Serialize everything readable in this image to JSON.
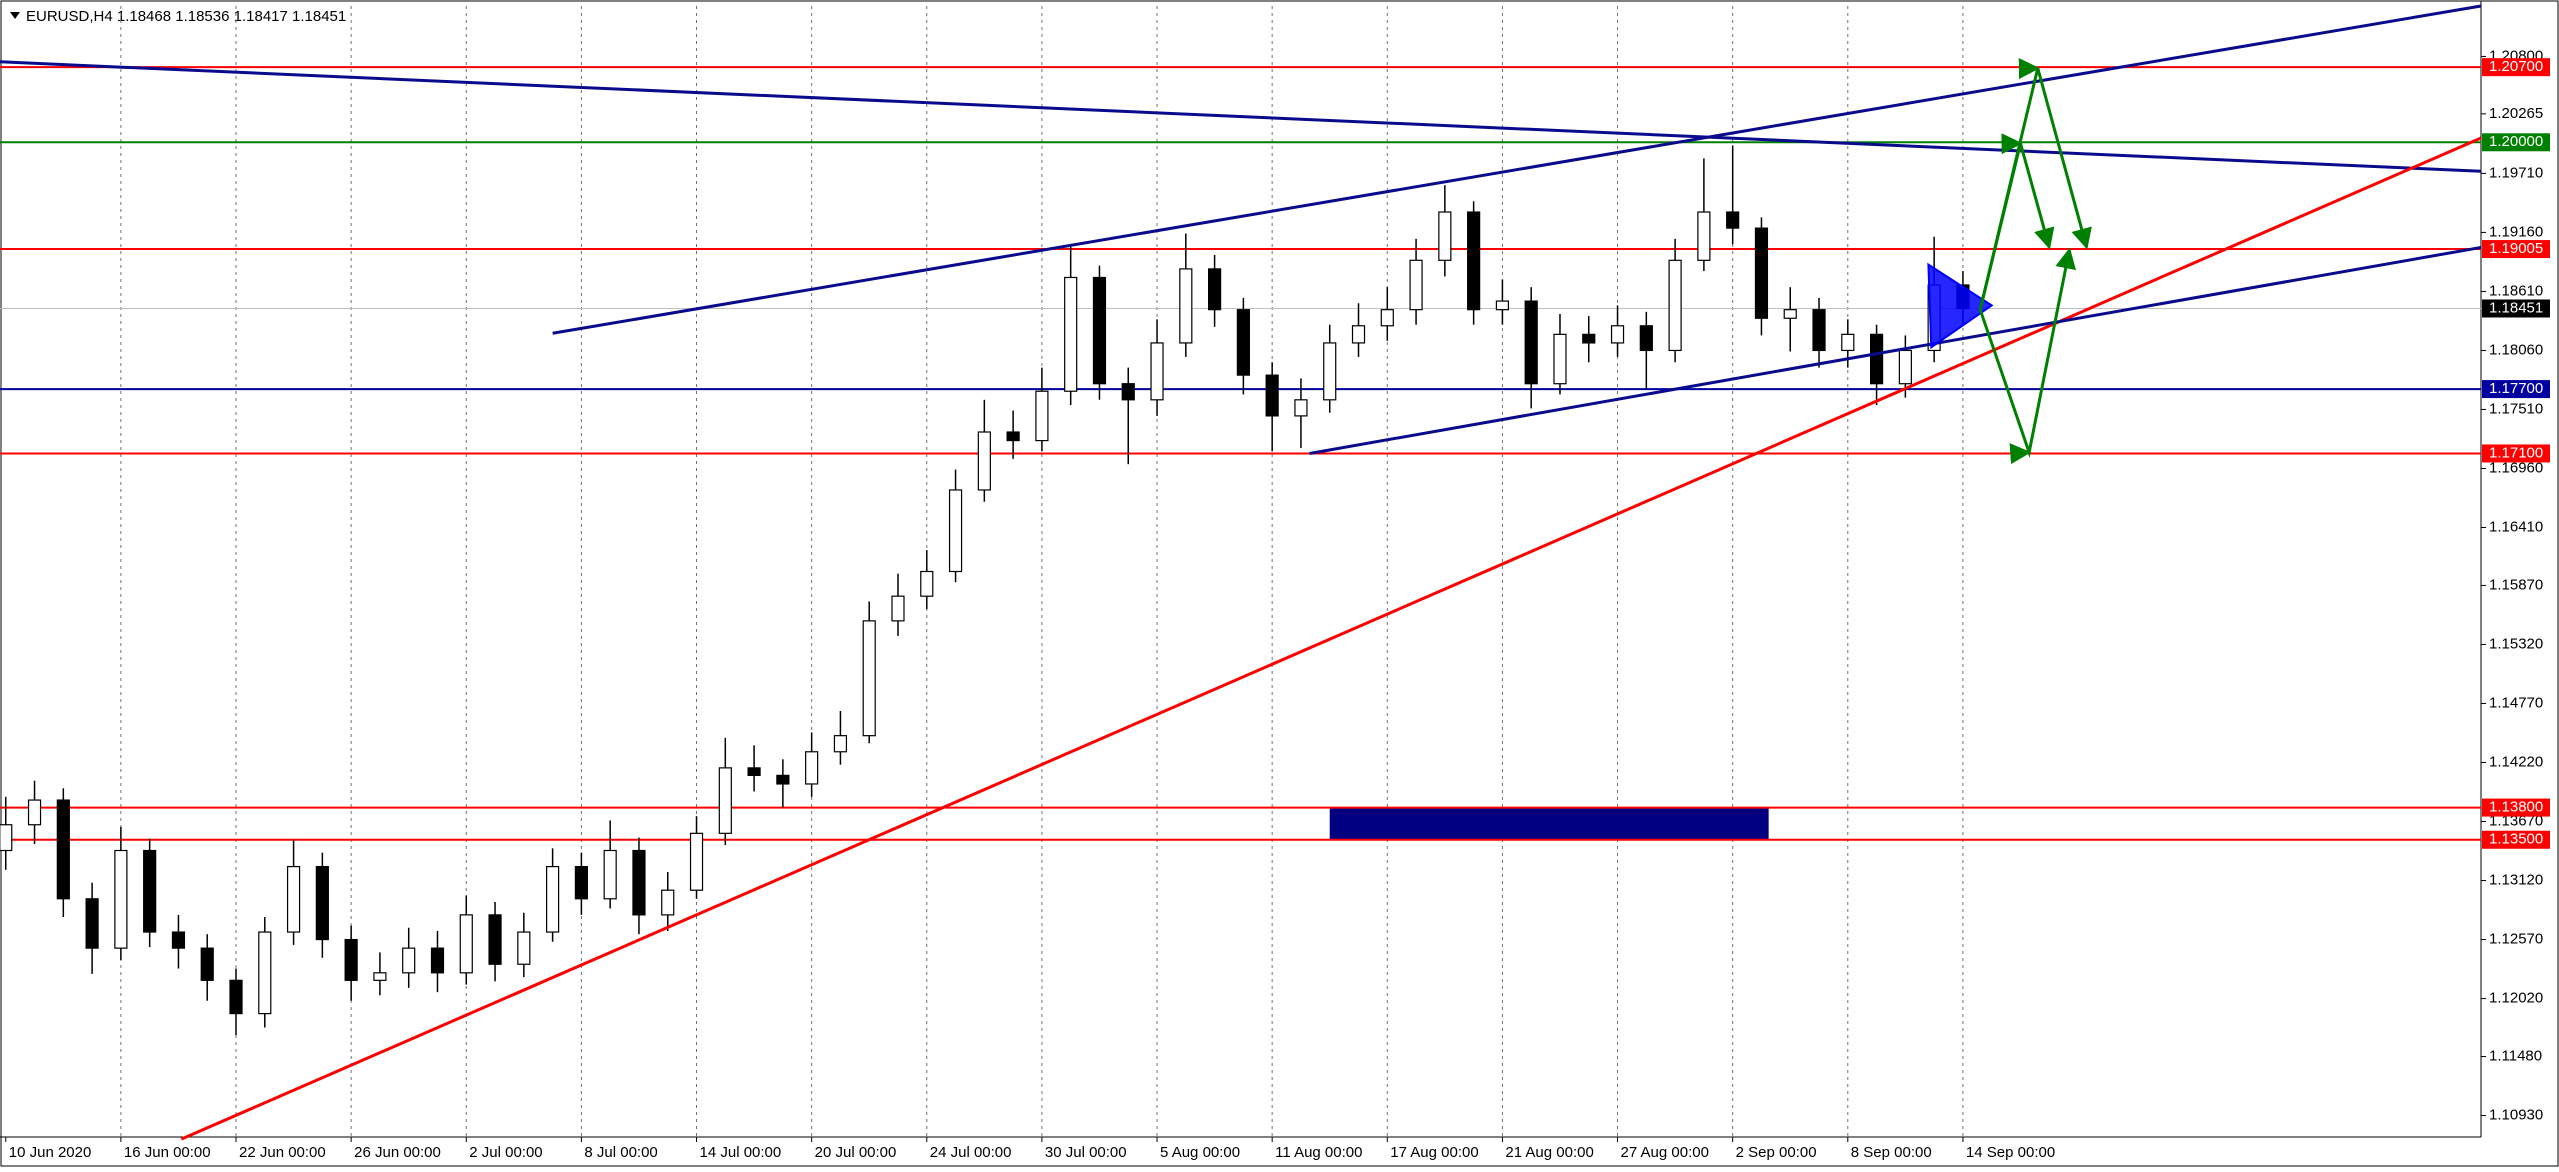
{
  "chart_data": {
    "type": "candlestick",
    "header": "EURUSD,H4  1.18468 1.18536 1.18417 1.18451",
    "open": [
      1.134,
      1.1364,
      1.1387,
      1.1295,
      1.1249,
      1.134,
      1.1264,
      1.1249,
      1.1219,
      1.1188,
      1.1264,
      1.1325,
      1.1257,
      1.1219,
      1.1226,
      1.1249,
      1.1226,
      1.128,
      1.1234,
      1.1264,
      1.1325,
      1.1295,
      1.134,
      1.128,
      1.1303,
      1.1356,
      1.1417,
      1.141,
      1.1402,
      1.1432,
      1.1447,
      1.1554,
      1.1577,
      1.16,
      1.1676,
      1.173,
      1.1722,
      1.1768,
      1.1874,
      1.1775,
      1.176,
      1.1813,
      1.1882,
      1.1844,
      1.1783,
      1.1745,
      1.176,
      1.1813,
      1.1829,
      1.1844,
      1.189,
      1.1935,
      1.1844,
      1.1852,
      1.1775,
      1.1821,
      1.1813,
      1.1829,
      1.1806,
      1.189,
      1.1935,
      1.192,
      1.1836,
      1.1844,
      1.1806,
      1.1821,
      1.1775,
      1.1806,
      1.1867
    ],
    "high": [
      1.139,
      1.1405,
      1.1398,
      1.131,
      1.1362,
      1.1351,
      1.128,
      1.1262,
      1.123,
      1.1278,
      1.135,
      1.1338,
      1.127,
      1.1245,
      1.1268,
      1.1265,
      1.1298,
      1.1292,
      1.1282,
      1.1342,
      1.1338,
      1.1368,
      1.1352,
      1.132,
      1.1372,
      1.1445,
      1.1438,
      1.1425,
      1.145,
      1.147,
      1.1572,
      1.1598,
      1.162,
      1.1695,
      1.176,
      1.175,
      1.179,
      1.1905,
      1.1885,
      1.179,
      1.1835,
      1.1915,
      1.1895,
      1.1855,
      1.1795,
      1.178,
      1.183,
      1.185,
      1.1865,
      1.191,
      1.196,
      1.1945,
      1.1872,
      1.1865,
      1.184,
      1.1838,
      1.1848,
      1.1842,
      1.191,
      1.1985,
      1.1997,
      1.193,
      1.1865,
      1.1855,
      1.1835,
      1.183,
      1.182,
      1.1912,
      1.188
    ],
    "low": [
      1.1322,
      1.1346,
      1.1278,
      1.1225,
      1.1238,
      1.125,
      1.123,
      1.12,
      1.1168,
      1.1175,
      1.1252,
      1.124,
      1.12,
      1.1205,
      1.1212,
      1.1208,
      1.1215,
      1.1218,
      1.1222,
      1.1255,
      1.128,
      1.1286,
      1.1262,
      1.1265,
      1.1295,
      1.1345,
      1.1395,
      1.138,
      1.139,
      1.142,
      1.144,
      1.154,
      1.1565,
      1.159,
      1.1665,
      1.1705,
      1.1712,
      1.1755,
      1.176,
      1.17,
      1.1745,
      1.18,
      1.1828,
      1.1765,
      1.1712,
      1.1715,
      1.1748,
      1.18,
      1.1815,
      1.183,
      1.1875,
      1.183,
      1.183,
      1.1752,
      1.1765,
      1.1795,
      1.18,
      1.177,
      1.1795,
      1.188,
      1.1905,
      1.182,
      1.1805,
      1.179,
      1.179,
      1.1755,
      1.1762,
      1.1795,
      1.183
    ],
    "close": [
      1.1364,
      1.1387,
      1.1295,
      1.1249,
      1.134,
      1.1264,
      1.1249,
      1.1219,
      1.1188,
      1.1264,
      1.1325,
      1.1257,
      1.1219,
      1.1226,
      1.1249,
      1.1226,
      1.128,
      1.1234,
      1.1264,
      1.1325,
      1.1295,
      1.134,
      1.128,
      1.1303,
      1.1356,
      1.1417,
      1.141,
      1.1402,
      1.1432,
      1.1447,
      1.1554,
      1.1577,
      1.16,
      1.1676,
      1.173,
      1.1722,
      1.1768,
      1.1874,
      1.1775,
      1.176,
      1.1813,
      1.1882,
      1.1844,
      1.1783,
      1.1745,
      1.176,
      1.1813,
      1.1829,
      1.1844,
      1.189,
      1.1935,
      1.1844,
      1.1852,
      1.1775,
      1.1821,
      1.1813,
      1.1829,
      1.1806,
      1.189,
      1.1935,
      1.192,
      1.1836,
      1.1844,
      1.1806,
      1.1821,
      1.1775,
      1.1806,
      1.1867,
      1.1845
    ],
    "xlim": [
      -0.2,
      86
    ],
    "xticks": [
      {
        "value": 0,
        "label": "10 Jun 2020"
      },
      {
        "value": 4,
        "label": "16 Jun 00:00"
      },
      {
        "value": 8,
        "label": "22 Jun 00:00"
      },
      {
        "value": 12,
        "label": "26 Jun 00:00"
      },
      {
        "value": 16,
        "label": "2 Jul 00:00"
      },
      {
        "value": 20,
        "label": "8 Jul 00:00"
      },
      {
        "value": 24,
        "label": "14 Jul 00:00"
      },
      {
        "value": 28,
        "label": "20 Jul 00:00"
      },
      {
        "value": 32,
        "label": "24 Jul 00:00"
      },
      {
        "value": 36,
        "label": "30 Jul 00:00"
      },
      {
        "value": 40,
        "label": "5 Aug 00:00"
      },
      {
        "value": 44,
        "label": "11 Aug 00:00"
      },
      {
        "value": 48,
        "label": "17 Aug 00:00"
      },
      {
        "value": 52,
        "label": "21 Aug 00:00"
      },
      {
        "value": 56,
        "label": "27 Aug 00:00"
      },
      {
        "value": 60,
        "label": "2 Sep 00:00"
      },
      {
        "value": 64,
        "label": "8 Sep 00:00"
      },
      {
        "value": 68,
        "label": "14 Sep 00:00"
      }
    ],
    "ylim": [
      1.1073,
      1.2127
    ],
    "yticks": [
      {
        "value": 1.208,
        "label": "1.20800"
      },
      {
        "value": 1.20265,
        "label": "1.20265"
      },
      {
        "value": 1.1971,
        "label": "1.19710"
      },
      {
        "value": 1.1916,
        "label": "1.19160"
      },
      {
        "value": 1.1861,
        "label": "1.18610"
      },
      {
        "value": 1.1806,
        "label": "1.18060"
      },
      {
        "value": 1.1751,
        "label": "1.17510"
      },
      {
        "value": 1.1696,
        "label": "1.16960"
      },
      {
        "value": 1.1641,
        "label": "1.16410"
      },
      {
        "value": 1.1587,
        "label": "1.15870"
      },
      {
        "value": 1.1532,
        "label": "1.15320"
      },
      {
        "value": 1.1477,
        "label": "1.14770"
      },
      {
        "value": 1.1422,
        "label": "1.14220"
      },
      {
        "value": 1.1367,
        "label": "1.13670"
      },
      {
        "value": 1.1312,
        "label": "1.13120"
      },
      {
        "value": 1.1257,
        "label": "1.12570"
      },
      {
        "value": 1.1202,
        "label": "1.12020"
      },
      {
        "value": 1.1148,
        "label": "1.11480"
      },
      {
        "value": 1.1093,
        "label": "1.10930"
      }
    ],
    "levels": [
      {
        "value": 1.207,
        "label": "1.20700",
        "color": "#ff0000"
      },
      {
        "value": 1.2,
        "label": "1.20000",
        "color": "#008000"
      },
      {
        "value": 1.19005,
        "label": "1.19005",
        "color": "#ff0000"
      },
      {
        "value": 1.18451,
        "label": "1.18451",
        "color": "#000000"
      },
      {
        "value": 1.177,
        "label": "1.17700",
        "color": "#0000a0"
      },
      {
        "value": 1.171,
        "label": "1.17100",
        "color": "#ff0000"
      },
      {
        "value": 1.138,
        "label": "1.13800",
        "color": "#ff0000"
      },
      {
        "value": 1.135,
        "label": "1.13500",
        "color": "#ff0000"
      }
    ],
    "trendlines": [
      {
        "x": [
          -0.2,
          86
        ],
        "y": [
          1.2075,
          1.1973
        ],
        "color": "#0a0a8c"
      },
      {
        "x": [
          19,
          86
        ],
        "y": [
          1.1822,
          1.2127
        ],
        "color": "#0a0a8c"
      },
      {
        "x": [
          6.1,
          86
        ],
        "y": [
          1.1071,
          1.2004
        ],
        "color": "#ff0000"
      },
      {
        "x": [
          45.3,
          86
        ],
        "y": [
          1.171,
          1.1902
        ],
        "color": "#0a0a8c"
      }
    ],
    "arrows": [
      {
        "x": [
          68.6,
          70.6,
          72.3
        ],
        "y": [
          1.1844,
          1.2069,
          1.1902
        ],
        "color": "#008000"
      },
      {
        "x": [
          68.6,
          70.0,
          71.0
        ],
        "y": [
          1.1844,
          1.1999,
          1.1902
        ],
        "color": "#008000"
      },
      {
        "x": [
          68.6,
          70.3,
          71.7
        ],
        "y": [
          1.1844,
          1.1711,
          1.19
        ],
        "color": "#008000"
      }
    ],
    "triangle": {
      "x": [
        66.8,
        69.0,
        66.9
      ],
      "y": [
        1.1886,
        1.1848,
        1.1809
      ],
      "color": "#0000ff"
    },
    "rectangle": {
      "x": [
        46.0,
        61.25
      ],
      "y": [
        1.138,
        1.135
      ],
      "color": "#000080"
    }
  }
}
